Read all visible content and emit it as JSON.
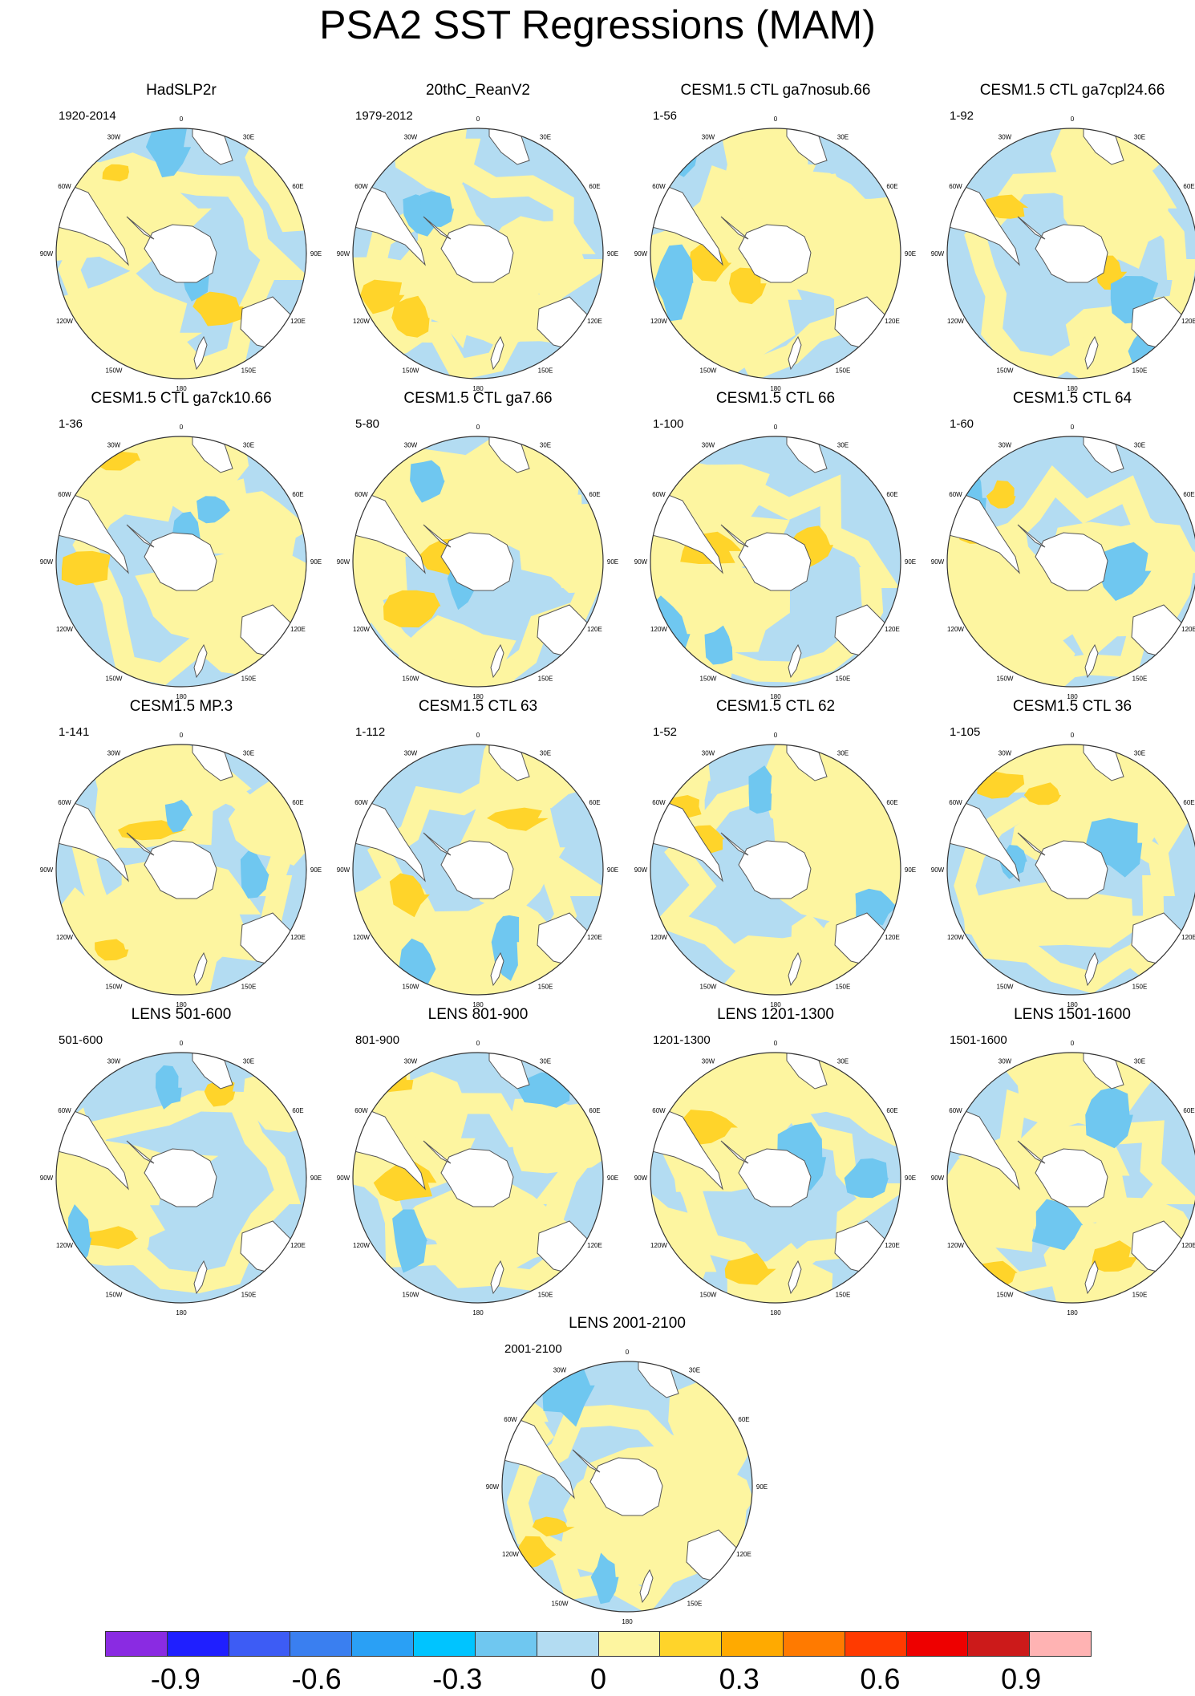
{
  "figure": {
    "title": "PSA2 SST Regressions (MAM)",
    "longitude_labels": [
      "0",
      "30E",
      "60E",
      "90E",
      "120E",
      "150E",
      "180",
      "150W",
      "120W",
      "90W",
      "60W",
      "30W"
    ]
  },
  "panels": [
    {
      "title": "HadSLP2r",
      "period": "1920-2014"
    },
    {
      "title": "20thC_ReanV2",
      "period": "1979-2012"
    },
    {
      "title": "CESM1.5 CTL ga7nosub.66",
      "period": "1-56"
    },
    {
      "title": "CESM1.5 CTL ga7cpl24.66",
      "period": "1-92"
    },
    {
      "title": "CESM1.5 CTL ga7ck10.66",
      "period": "1-36"
    },
    {
      "title": "CESM1.5 CTL ga7.66",
      "period": "5-80"
    },
    {
      "title": "CESM1.5 CTL 66",
      "period": "1-100"
    },
    {
      "title": "CESM1.5 CTL 64",
      "period": "1-60"
    },
    {
      "title": "CESM1.5 MP.3",
      "period": "1-141"
    },
    {
      "title": "CESM1.5 CTL 63",
      "period": "1-112"
    },
    {
      "title": "CESM1.5 CTL 62",
      "period": "1-52"
    },
    {
      "title": "CESM1.5 CTL 36",
      "period": "1-105"
    },
    {
      "title": "LENS 501-600",
      "period": "501-600"
    },
    {
      "title": "LENS 801-900",
      "period": "801-900"
    },
    {
      "title": "LENS 1201-1300",
      "period": "1201-1300"
    },
    {
      "title": "LENS 1501-1600",
      "period": "1501-1600"
    },
    {
      "title": "LENS 2001-2100",
      "period": "2001-2100"
    }
  ],
  "colorbar": {
    "colors": [
      "#8a2be2",
      "#1f1fff",
      "#3d5cf5",
      "#3a7ff0",
      "#2aa0f5",
      "#00c4ff",
      "#6fc7f0",
      "#b3dcf2",
      "#fdf5a0",
      "#ffd42a",
      "#ffaa00",
      "#ff7a00",
      "#ff3a00",
      "#ee0000",
      "#cc1a1a",
      "#ffb3b3"
    ],
    "tick_values": [
      -0.9,
      -0.6,
      -0.3,
      0,
      0.3,
      0.6,
      0.9
    ],
    "tick_labels": [
      "-0.9",
      "-0.6",
      "-0.3",
      "0",
      "0.3",
      "0.6",
      "0.9"
    ],
    "levels_min": -1.05,
    "levels_max": 1.05
  }
}
